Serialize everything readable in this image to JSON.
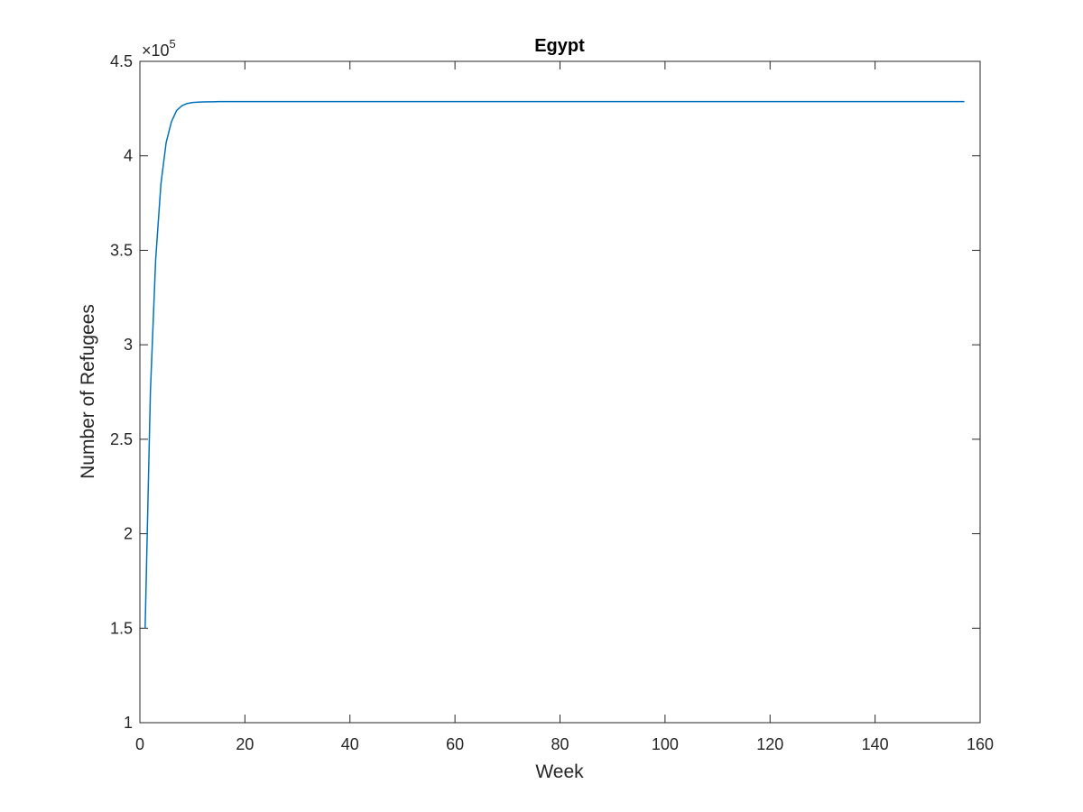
{
  "chart_data": {
    "type": "line",
    "title": "Egypt",
    "xlabel": "Week",
    "ylabel": "Number of Refugees",
    "xlim": [
      0,
      160
    ],
    "ylim": [
      1,
      4.5
    ],
    "y_multiplier": "×10",
    "y_exponent": "5",
    "x_ticks": [
      0,
      20,
      40,
      60,
      80,
      100,
      120,
      140,
      160
    ],
    "y_ticks": [
      1,
      1.5,
      2,
      2.5,
      3,
      3.5,
      4,
      4.5
    ],
    "x_tick_labels": [
      "0",
      "20",
      "40",
      "60",
      "80",
      "100",
      "120",
      "140",
      "160"
    ],
    "y_tick_labels": [
      "1",
      "1.5",
      "2",
      "2.5",
      "3",
      "3.5",
      "4",
      "4.5"
    ],
    "grid": false,
    "box": true,
    "colors": {
      "line": "#0072BD",
      "axes": "#262626",
      "title": "#000000"
    },
    "series": [
      {
        "x": [
          1,
          2,
          3,
          4,
          5,
          6,
          7,
          8,
          9,
          10,
          11,
          12,
          13,
          14,
          15,
          16,
          20,
          30,
          50,
          80,
          100,
          130,
          157
        ],
        "y": [
          1.5,
          2.75,
          3.45,
          3.85,
          4.07,
          4.18,
          4.24,
          4.265,
          4.277,
          4.282,
          4.284,
          4.285,
          4.286,
          4.286,
          4.287,
          4.287,
          4.287,
          4.287,
          4.287,
          4.287,
          4.287,
          4.287,
          4.287
        ]
      }
    ]
  }
}
